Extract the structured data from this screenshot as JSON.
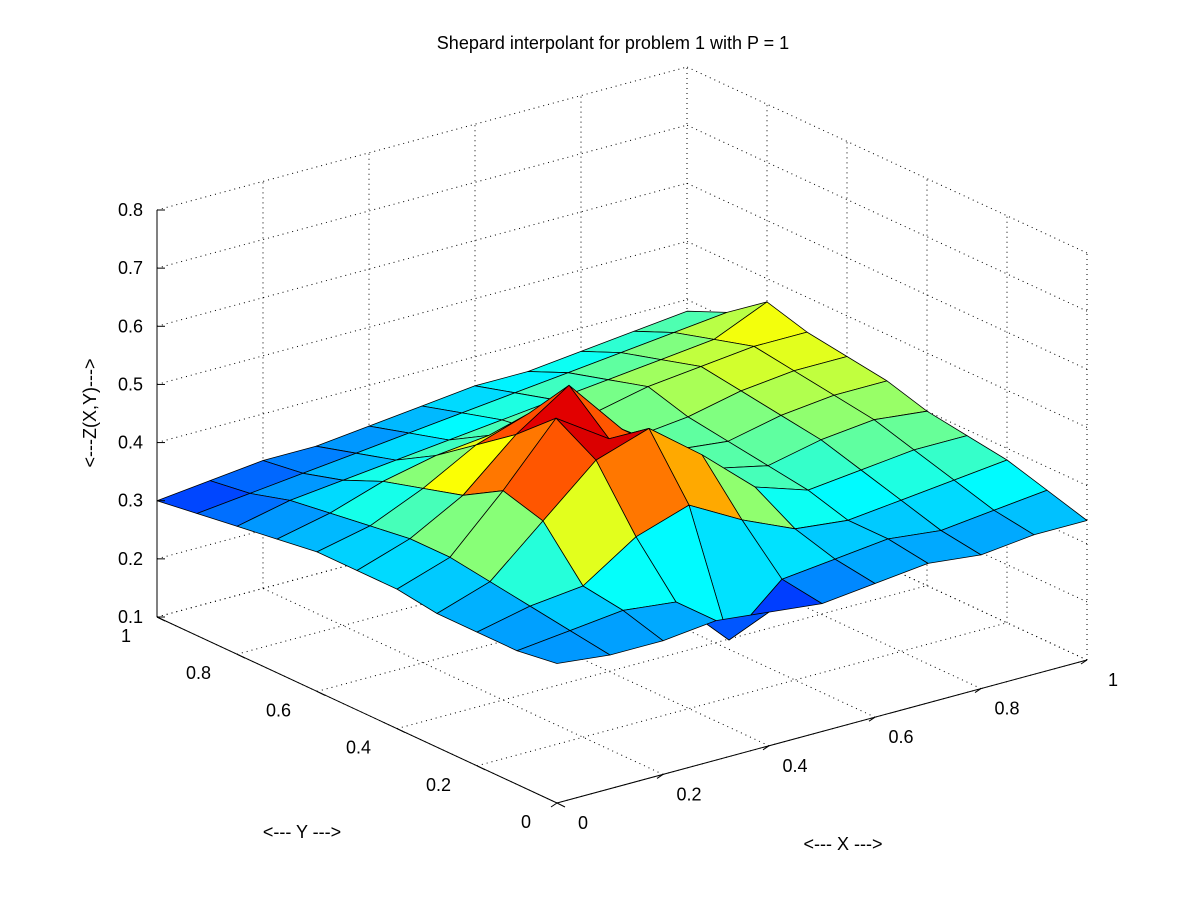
{
  "chart_data": {
    "type": "surface",
    "title": "Shepard interpolant for problem 1 with P = 1",
    "xlabel": "<--- X --->",
    "ylabel": "<--- Y --->",
    "zlabel": "<---Z(X,Y)--->",
    "xlim": [
      0,
      1
    ],
    "ylim": [
      0,
      1
    ],
    "zlim": [
      0.1,
      0.8
    ],
    "grid": true,
    "colormap": "jet",
    "x_ticks": [
      "0",
      "0.2",
      "0.4",
      "0.6",
      "0.8",
      "1"
    ],
    "y_ticks": [
      "0",
      "0.2",
      "0.4",
      "0.6",
      "0.8",
      "1"
    ],
    "z_ticks": [
      "0.1",
      "0.2",
      "0.3",
      "0.4",
      "0.5",
      "0.6",
      "0.7",
      "0.8"
    ],
    "grid_x": [
      0,
      0.1,
      0.2,
      0.3,
      0.4,
      0.5,
      0.6,
      0.7,
      0.8,
      0.9,
      1.0
    ],
    "grid_y": [
      0,
      0.1,
      0.2,
      0.3,
      0.4,
      0.5,
      0.6,
      0.7,
      0.8,
      0.9,
      1.0
    ],
    "z_values": [
      [
        0.34,
        0.33,
        0.33,
        0.34,
        0.33,
        0.32,
        0.33,
        0.34,
        0.33,
        0.34,
        0.34
      ],
      [
        0.33,
        0.34,
        0.35,
        0.34,
        0.25,
        0.33,
        0.34,
        0.35,
        0.34,
        0.35,
        0.36
      ],
      [
        0.33,
        0.35,
        0.36,
        0.42,
        0.45,
        0.4,
        0.36,
        0.35,
        0.36,
        0.37,
        0.38
      ],
      [
        0.33,
        0.36,
        0.44,
        0.52,
        0.55,
        0.48,
        0.4,
        0.37,
        0.38,
        0.39,
        0.39
      ],
      [
        0.34,
        0.37,
        0.46,
        0.56,
        0.5,
        0.46,
        0.4,
        0.38,
        0.4,
        0.41,
        0.4
      ],
      [
        0.34,
        0.37,
        0.42,
        0.5,
        0.56,
        0.46,
        0.4,
        0.39,
        0.41,
        0.42,
        0.42
      ],
      [
        0.34,
        0.36,
        0.4,
        0.45,
        0.48,
        0.42,
        0.39,
        0.4,
        0.42,
        0.43,
        0.43
      ],
      [
        0.33,
        0.35,
        0.38,
        0.4,
        0.41,
        0.39,
        0.4,
        0.42,
        0.43,
        0.44,
        0.44
      ],
      [
        0.32,
        0.34,
        0.35,
        0.36,
        0.37,
        0.38,
        0.39,
        0.4,
        0.41,
        0.42,
        0.46
      ],
      [
        0.31,
        0.32,
        0.33,
        0.34,
        0.35,
        0.36,
        0.37,
        0.38,
        0.39,
        0.4,
        0.41
      ],
      [
        0.3,
        0.31,
        0.32,
        0.32,
        0.33,
        0.34,
        0.35,
        0.35,
        0.36,
        0.37,
        0.38
      ]
    ]
  }
}
